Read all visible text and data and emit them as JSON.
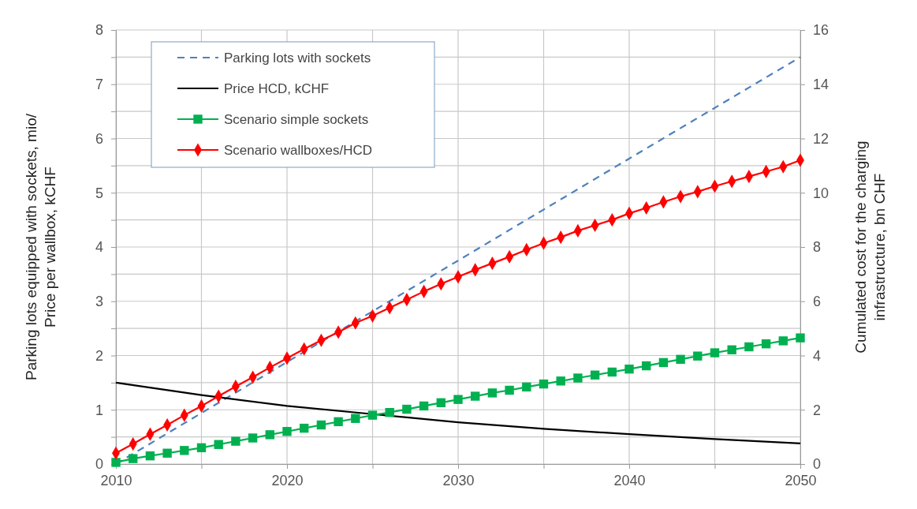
{
  "chart_data": {
    "type": "line",
    "ylabel": "Parking lots equipped with sockets, mio/ Price per wallbox, kCHF",
    "y2label": "Cumulated cost for the charging infrastructure, bn CHF",
    "xlim": [
      2010,
      2050
    ],
    "xticks": [
      2010,
      {
        "value": 2015,
        "label": null
      },
      2020,
      {
        "value": 2025,
        "label": null
      },
      2030,
      {
        "value": 2035,
        "label": null
      },
      2040,
      {
        "value": 2045,
        "label": null
      },
      2050
    ],
    "ylim": [
      0,
      8
    ],
    "yticks": [
      0,
      {
        "value": 0.5,
        "label": null
      },
      1,
      {
        "value": 1.5,
        "label": null
      },
      2,
      {
        "value": 2.5,
        "label": null
      },
      3,
      {
        "value": 3.5,
        "label": null
      },
      4,
      {
        "value": 4.5,
        "label": null
      },
      5,
      {
        "value": 5.5,
        "label": null
      },
      6,
      {
        "value": 6.5,
        "label": null
      },
      7,
      {
        "value": 7.5,
        "label": null
      },
      8
    ],
    "y2lim": [
      0,
      16
    ],
    "y2ticks": [
      0,
      2,
      4,
      6,
      8,
      10,
      12,
      14,
      16
    ],
    "grid": true,
    "legend": "top left",
    "series": [
      {
        "name": "Parking lots with sockets",
        "color": "#4f81bd",
        "line_style": "dashed",
        "marker": "none",
        "x": [
          2010,
          2020,
          2030,
          2040,
          2050
        ],
        "values": [
          0,
          1.88,
          3.75,
          5.63,
          7.5
        ]
      },
      {
        "name": "Price HCD, kCHF",
        "color": "#000000",
        "line_style": "solid",
        "marker": "none",
        "x": [
          2010,
          2015,
          2020,
          2025,
          2030,
          2035,
          2040,
          2045,
          2050
        ],
        "values": [
          1.5,
          1.27,
          1.07,
          0.92,
          0.77,
          0.65,
          0.55,
          0.46,
          0.38
        ]
      },
      {
        "name": "Scenario simple sockets",
        "color": "#00b050",
        "line_style": "solid",
        "marker": "square",
        "axis": "y2",
        "x": [
          2010,
          2011,
          2012,
          2013,
          2014,
          2015,
          2016,
          2017,
          2018,
          2019,
          2020,
          2021,
          2022,
          2023,
          2024,
          2025,
          2026,
          2027,
          2028,
          2029,
          2030,
          2031,
          2032,
          2033,
          2034,
          2035,
          2036,
          2037,
          2038,
          2039,
          2040,
          2041,
          2042,
          2043,
          2044,
          2045,
          2046,
          2047,
          2048,
          2049,
          2050
        ],
        "values": [
          0.06,
          0.2,
          0.3,
          0.4,
          0.5,
          0.6,
          0.72,
          0.84,
          0.96,
          1.08,
          1.2,
          1.32,
          1.44,
          1.56,
          1.68,
          1.8,
          1.9,
          2.02,
          2.14,
          2.26,
          2.38,
          2.5,
          2.62,
          2.72,
          2.84,
          2.95,
          3.06,
          3.17,
          3.28,
          3.39,
          3.5,
          3.62,
          3.74,
          3.86,
          3.98,
          4.1,
          4.21,
          4.32,
          4.43,
          4.54,
          4.65
        ]
      },
      {
        "name": "Scenario wallboxes/HCD",
        "color": "#ff0000",
        "line_style": "solid",
        "marker": "diamond",
        "axis": "y2",
        "x": [
          2010,
          2011,
          2012,
          2013,
          2014,
          2015,
          2016,
          2017,
          2018,
          2019,
          2020,
          2021,
          2022,
          2023,
          2024,
          2025,
          2026,
          2027,
          2028,
          2029,
          2030,
          2031,
          2032,
          2033,
          2034,
          2035,
          2036,
          2037,
          2038,
          2039,
          2040,
          2041,
          2042,
          2043,
          2044,
          2045,
          2046,
          2047,
          2048,
          2049,
          2050
        ],
        "values": [
          0.4,
          0.74,
          1.1,
          1.44,
          1.8,
          2.14,
          2.5,
          2.86,
          3.2,
          3.56,
          3.9,
          4.24,
          4.56,
          4.86,
          5.2,
          5.46,
          5.76,
          6.06,
          6.36,
          6.64,
          6.9,
          7.16,
          7.4,
          7.64,
          7.9,
          8.14,
          8.36,
          8.6,
          8.8,
          9,
          9.24,
          9.44,
          9.66,
          9.86,
          10.04,
          10.24,
          10.42,
          10.6,
          10.78,
          10.96,
          11.2
        ]
      }
    ]
  }
}
